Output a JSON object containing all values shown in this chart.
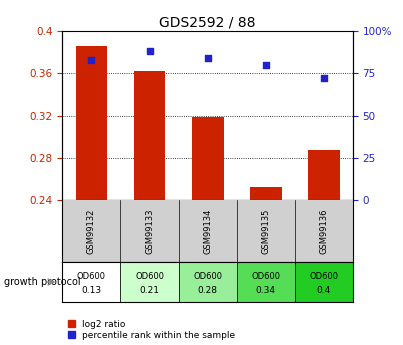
{
  "title": "GDS2592 / 88",
  "samples": [
    "GSM99132",
    "GSM99133",
    "GSM99134",
    "GSM99135",
    "GSM99136"
  ],
  "log2_ratio": [
    0.386,
    0.362,
    0.319,
    0.252,
    0.287
  ],
  "percentile_rank": [
    83,
    88,
    84,
    80,
    72
  ],
  "bar_color": "#cc2200",
  "dot_color": "#2222cc",
  "ylim_left": [
    0.24,
    0.4
  ],
  "ylim_right": [
    0,
    100
  ],
  "yticks_left": [
    0.24,
    0.28,
    0.32,
    0.36,
    0.4
  ],
  "yticks_right": [
    0,
    25,
    50,
    75,
    100
  ],
  "ytick_right_labels": [
    "0",
    "25",
    "50",
    "75",
    "100%"
  ],
  "od600_values": [
    "0.13",
    "0.21",
    "0.28",
    "0.34",
    "0.4"
  ],
  "od600_colors": [
    "#ffffff",
    "#ccffcc",
    "#99ee99",
    "#55dd55",
    "#22cc22"
  ],
  "legend_log2": "log2 ratio",
  "legend_pct": "percentile rank within the sample",
  "bar_width": 0.55,
  "title_fontsize": 10,
  "tick_fontsize": 7.5
}
